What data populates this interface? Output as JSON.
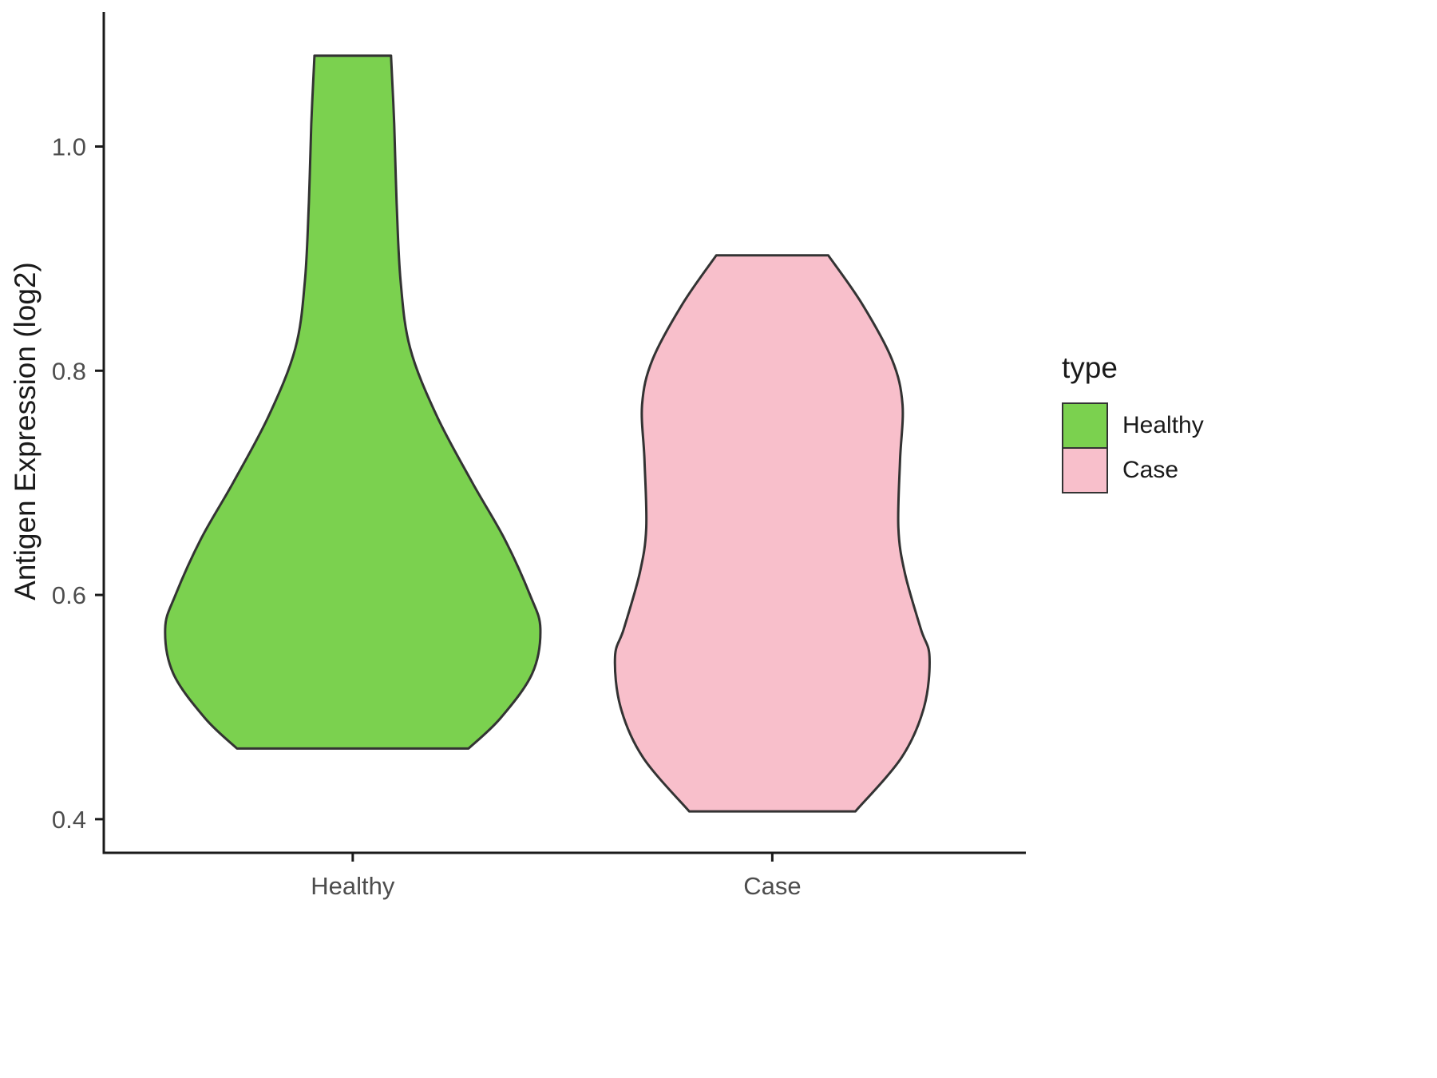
{
  "chart_data": {
    "type": "violin",
    "title": "",
    "xlabel": "",
    "ylabel": "Antigen Expression (log2)",
    "categories": [
      "Healthy",
      "Case"
    ],
    "y_ticks": [
      0.4,
      0.6,
      0.8,
      1.0
    ],
    "ylim": [
      0.37,
      1.12
    ],
    "grid": false,
    "legend": {
      "title": "type",
      "position": "right",
      "entries": [
        {
          "label": "Healthy",
          "color": "#7bd14f"
        },
        {
          "label": "Case",
          "color": "#f8bfcb"
        }
      ]
    },
    "colors": {
      "outline": "#333333",
      "axis": "#1a1a1a",
      "tick_text": "#4d4d4d",
      "healthy_fill": "#7bd14f",
      "case_fill": "#f8bfcb"
    },
    "series": [
      {
        "name": "Healthy",
        "color": "#7bd14f",
        "value_range": [
          0.463,
          1.081
        ],
        "profile": [
          [
            1.081,
            0.204
          ],
          [
            1.02,
            0.221
          ],
          [
            0.95,
            0.234
          ],
          [
            0.88,
            0.255
          ],
          [
            0.82,
            0.306
          ],
          [
            0.76,
            0.447
          ],
          [
            0.7,
            0.638
          ],
          [
            0.65,
            0.809
          ],
          [
            0.6,
            0.945
          ],
          [
            0.57,
            1.0
          ],
          [
            0.53,
            0.957
          ],
          [
            0.49,
            0.787
          ],
          [
            0.463,
            0.617
          ]
        ]
      },
      {
        "name": "Case",
        "color": "#f8bfcb",
        "value_range": [
          0.407,
          0.903
        ],
        "profile": [
          [
            0.903,
            0.298
          ],
          [
            0.86,
            0.477
          ],
          [
            0.81,
            0.638
          ],
          [
            0.77,
            0.694
          ],
          [
            0.72,
            0.681
          ],
          [
            0.66,
            0.672
          ],
          [
            0.62,
            0.706
          ],
          [
            0.57,
            0.791
          ],
          [
            0.545,
            0.838
          ],
          [
            0.5,
            0.809
          ],
          [
            0.455,
            0.689
          ],
          [
            0.407,
            0.443
          ]
        ]
      }
    ]
  }
}
